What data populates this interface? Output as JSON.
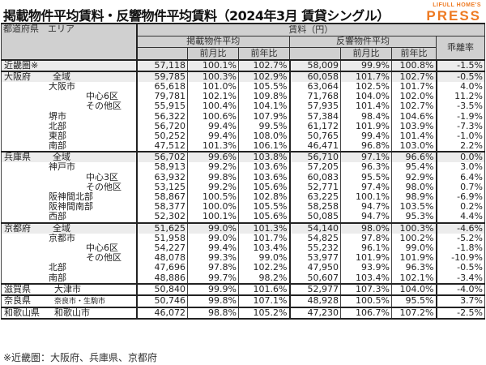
{
  "title": "掲載物件平均賃料・反響物件平均賃料（2024年3月 賃貸シングル）",
  "logo": {
    "line1": "LIFULL HOME'S",
    "line2": "PRESS",
    "color": "#ee7a22"
  },
  "table": {
    "header": {
      "region": "都道府県　エリア",
      "rent_group": "賃料（円）",
      "listed_avg": "掲載物件平均",
      "inquiry_avg": "反響物件平均",
      "gap_rate": "乖離率",
      "mom": "前月比",
      "yoy": "前年比"
    },
    "rows": [
      {
        "pref": "近畿圏※",
        "area": "",
        "listed": "57,118",
        "listed_mom": "100.1%",
        "listed_yoy": "102.7%",
        "inq": "58,009",
        "inq_mom": "99.9%",
        "inq_yoy": "100.8%",
        "gap": "-1.5%"
      },
      {
        "pref": "大阪府",
        "area": "全域",
        "listed": "59,785",
        "listed_mom": "100.3%",
        "listed_yoy": "102.9%",
        "inq": "60,058",
        "inq_mom": "101.7%",
        "inq_yoy": "102.7%",
        "gap": "-0.5%"
      },
      {
        "pref": "",
        "area": "大阪市",
        "listed": "65,618",
        "listed_mom": "101.0%",
        "listed_yoy": "105.5%",
        "inq": "63,064",
        "inq_mom": "102.5%",
        "inq_yoy": "101.7%",
        "gap": "4.0%"
      },
      {
        "pref": "",
        "area": "中心6区",
        "listed": "79,781",
        "listed_mom": "102.1%",
        "listed_yoy": "109.8%",
        "inq": "71,768",
        "inq_mom": "104.0%",
        "inq_yoy": "102.0%",
        "gap": "11.2%"
      },
      {
        "pref": "",
        "area": "その他区",
        "listed": "55,915",
        "listed_mom": "100.4%",
        "listed_yoy": "104.1%",
        "inq": "57,935",
        "inq_mom": "101.4%",
        "inq_yoy": "102.7%",
        "gap": "-3.5%"
      },
      {
        "pref": "",
        "area": "堺市",
        "listed": "56,322",
        "listed_mom": "100.6%",
        "listed_yoy": "107.9%",
        "inq": "57,384",
        "inq_mom": "98.4%",
        "inq_yoy": "104.6%",
        "gap": "-1.9%"
      },
      {
        "pref": "",
        "area": "北部",
        "listed": "56,720",
        "listed_mom": "99.4%",
        "listed_yoy": "99.5%",
        "inq": "61,172",
        "inq_mom": "101.9%",
        "inq_yoy": "103.9%",
        "gap": "-7.3%"
      },
      {
        "pref": "",
        "area": "東部",
        "listed": "50,252",
        "listed_mom": "99.4%",
        "listed_yoy": "108.0%",
        "inq": "50,765",
        "inq_mom": "99.4%",
        "inq_yoy": "101.4%",
        "gap": "-1.0%"
      },
      {
        "pref": "",
        "area": "南部",
        "listed": "47,512",
        "listed_mom": "101.3%",
        "listed_yoy": "106.1%",
        "inq": "46,471",
        "inq_mom": "96.8%",
        "inq_yoy": "103.0%",
        "gap": "2.2%"
      },
      {
        "pref": "兵庫県",
        "area": "全域",
        "listed": "56,702",
        "listed_mom": "99.6%",
        "listed_yoy": "103.8%",
        "inq": "56,710",
        "inq_mom": "97.1%",
        "inq_yoy": "96.6%",
        "gap": "0.0%"
      },
      {
        "pref": "",
        "area": "神戸市",
        "listed": "58,913",
        "listed_mom": "99.2%",
        "listed_yoy": "103.6%",
        "inq": "57,205",
        "inq_mom": "96.3%",
        "inq_yoy": "95.4%",
        "gap": "3.0%"
      },
      {
        "pref": "",
        "area": "中心3区",
        "listed": "63,932",
        "listed_mom": "99.8%",
        "listed_yoy": "103.6%",
        "inq": "60,083",
        "inq_mom": "95.5%",
        "inq_yoy": "92.9%",
        "gap": "6.4%"
      },
      {
        "pref": "",
        "area": "その他区",
        "listed": "53,125",
        "listed_mom": "99.2%",
        "listed_yoy": "105.6%",
        "inq": "52,771",
        "inq_mom": "97.4%",
        "inq_yoy": "98.0%",
        "gap": "0.7%"
      },
      {
        "pref": "",
        "area": "阪神間北部",
        "listed": "58,867",
        "listed_mom": "100.5%",
        "listed_yoy": "102.8%",
        "inq": "63,225",
        "inq_mom": "100.1%",
        "inq_yoy": "98.9%",
        "gap": "-6.9%"
      },
      {
        "pref": "",
        "area": "阪神間南部",
        "listed": "58,377",
        "listed_mom": "100.0%",
        "listed_yoy": "105.5%",
        "inq": "58,258",
        "inq_mom": "94.7%",
        "inq_yoy": "103.5%",
        "gap": "0.2%"
      },
      {
        "pref": "",
        "area": "西部",
        "listed": "52,302",
        "listed_mom": "100.1%",
        "listed_yoy": "105.6%",
        "inq": "50,085",
        "inq_mom": "94.7%",
        "inq_yoy": "95.3%",
        "gap": "4.4%"
      },
      {
        "pref": "京都府",
        "area": "全域",
        "listed": "51,625",
        "listed_mom": "99.0%",
        "listed_yoy": "101.3%",
        "inq": "54,140",
        "inq_mom": "98.0%",
        "inq_yoy": "100.3%",
        "gap": "-4.6%"
      },
      {
        "pref": "",
        "area": "京都市",
        "listed": "51,958",
        "listed_mom": "99.0%",
        "listed_yoy": "101.7%",
        "inq": "54,825",
        "inq_mom": "97.8%",
        "inq_yoy": "100.2%",
        "gap": "-5.2%"
      },
      {
        "pref": "",
        "area": "中心6区",
        "listed": "54,227",
        "listed_mom": "99.4%",
        "listed_yoy": "103.4%",
        "inq": "55,232",
        "inq_mom": "96.1%",
        "inq_yoy": "99.0%",
        "gap": "-1.8%"
      },
      {
        "pref": "",
        "area": "その他区",
        "listed": "48,078",
        "listed_mom": "99.3%",
        "listed_yoy": "99.0%",
        "inq": "53,977",
        "inq_mom": "101.9%",
        "inq_yoy": "101.9%",
        "gap": "-10.9%"
      },
      {
        "pref": "",
        "area": "北部",
        "listed": "47,696",
        "listed_mom": "97.8%",
        "listed_yoy": "102.2%",
        "inq": "47,950",
        "inq_mom": "93.9%",
        "inq_yoy": "96.3%",
        "gap": "-0.5%"
      },
      {
        "pref": "",
        "area": "南部",
        "listed": "48,886",
        "listed_mom": "99.7%",
        "listed_yoy": "98.2%",
        "inq": "50,607",
        "inq_mom": "103.4%",
        "inq_yoy": "102.1%",
        "gap": "-3.4%"
      },
      {
        "pref": "滋賀県",
        "area": "大津市",
        "listed": "50,840",
        "listed_mom": "99.9%",
        "listed_yoy": "101.6%",
        "inq": "52,977",
        "inq_mom": "107.3%",
        "inq_yoy": "104.0%",
        "gap": "-4.0%"
      },
      {
        "pref": "奈良県",
        "area": "奈良市・生駒市",
        "listed": "50,746",
        "listed_mom": "99.8%",
        "listed_yoy": "107.1%",
        "inq": "48,928",
        "inq_mom": "100.5%",
        "inq_yoy": "95.5%",
        "gap": "3.7%"
      },
      {
        "pref": "和歌山県",
        "area": "和歌山市",
        "listed": "46,072",
        "listed_mom": "98.8%",
        "listed_yoy": "105.2%",
        "inq": "47,230",
        "inq_mom": "106.7%",
        "inq_yoy": "107.2%",
        "gap": "-2.5%"
      }
    ]
  },
  "footnote": "※近畿圏：大阪府、兵庫県、京都府"
}
